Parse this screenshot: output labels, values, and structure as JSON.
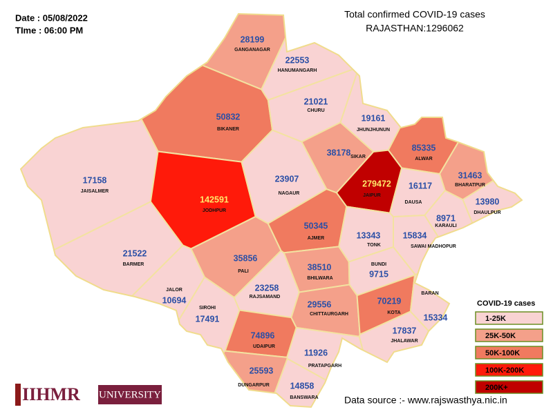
{
  "header": {
    "date": "Date : 05/08/2022",
    "time": "TIme : 06:00 PM",
    "title": "Total confirmed COVID-19 cases",
    "total": "RAJASTHAN:1296062"
  },
  "districts": [
    {
      "name": "GANGANAGAR",
      "cases": 28199,
      "color": "#f4a08a"
    },
    {
      "name": "HANUMANGARH",
      "cases": 22553,
      "color": "#f9d3d3"
    },
    {
      "name": "BIKANER",
      "cases": 50832,
      "color": "#f07a5f"
    },
    {
      "name": "CHURU",
      "cases": 21021,
      "color": "#f9d3d3"
    },
    {
      "name": "JHUNJHUNUN",
      "cases": 19161,
      "color": "#f9d3d3"
    },
    {
      "name": "SIKAR",
      "cases": 38178,
      "color": "#f4a08a"
    },
    {
      "name": "ALWAR",
      "cases": 85335,
      "color": "#f07a5f"
    },
    {
      "name": "BHARATPUR",
      "cases": 31463,
      "color": "#f4a08a"
    },
    {
      "name": "JAISALMER",
      "cases": 17158,
      "color": "#f9d3d3"
    },
    {
      "name": "JODHPUR",
      "cases": 142591,
      "color": "#ff1a0a",
      "label_color": "#ffe96b"
    },
    {
      "name": "NAGAUR",
      "cases": 23907,
      "color": "#f9d3d3"
    },
    {
      "name": "JAIPUR",
      "cases": 279472,
      "color": "#c00000",
      "label_color": "#ffe96b"
    },
    {
      "name": "DAUSA",
      "cases": 16117,
      "color": "#f9d3d3"
    },
    {
      "name": "DHAULPUR",
      "cases": 13980,
      "color": "#f9d3d3"
    },
    {
      "name": "KARAULI",
      "cases": 8971,
      "color": "#f9d3d3"
    },
    {
      "name": "AJMER",
      "cases": 50345,
      "color": "#f07a5f"
    },
    {
      "name": "TONK",
      "cases": 13343,
      "color": "#f9d3d3"
    },
    {
      "name": "SAWAI MADHOPUR",
      "cases": 15834,
      "color": "#f9d3d3"
    },
    {
      "name": "BARMER",
      "cases": 21522,
      "color": "#f9d3d3"
    },
    {
      "name": "PALI",
      "cases": 35856,
      "color": "#f4a08a"
    },
    {
      "name": "BHILWARA",
      "cases": 38510,
      "color": "#f4a08a"
    },
    {
      "name": "BUNDI",
      "cases": 9715,
      "color": "#f9d3d3"
    },
    {
      "name": "JALOR",
      "cases": 10694,
      "color": "#f9d3d3"
    },
    {
      "name": "SIROHI",
      "cases": 17491,
      "color": "#f9d3d3"
    },
    {
      "name": "RAJSAMAND",
      "cases": 23258,
      "color": "#f9d3d3"
    },
    {
      "name": "CHITTAURGARH",
      "cases": 29556,
      "color": "#f4a08a"
    },
    {
      "name": "KOTA",
      "cases": 70219,
      "color": "#f07a5f"
    },
    {
      "name": "BARAN",
      "cases": 15334,
      "color": "#f9d3d3"
    },
    {
      "name": "JHALAWAR",
      "cases": 17837,
      "color": "#f9d3d3"
    },
    {
      "name": "UDAIPUR",
      "cases": 74896,
      "color": "#f07a5f"
    },
    {
      "name": "DUNGARPUR",
      "cases": 25593,
      "color": "#f4a08a"
    },
    {
      "name": "PRATAPGARH",
      "cases": 11926,
      "color": "#f9d3d3"
    },
    {
      "name": "BANSWARA",
      "cases": 14858,
      "color": "#f9d3d3"
    }
  ],
  "legend": {
    "title": "COVID-19 cases",
    "items": [
      {
        "label": "1-25K",
        "color": "#f9d3d3"
      },
      {
        "label": "25K-50K",
        "color": "#f4a08a"
      },
      {
        "label": "50K-100K",
        "color": "#f07a5f"
      },
      {
        "label": "100K-200K",
        "color": "#ff1a0a"
      },
      {
        "label": "200K+",
        "color": "#c00000"
      }
    ]
  },
  "source": "Data source :- www.rajswasthya.nic.in",
  "logo": {
    "text": "IIHMR",
    "suffix": "UNIVERSITY"
  }
}
